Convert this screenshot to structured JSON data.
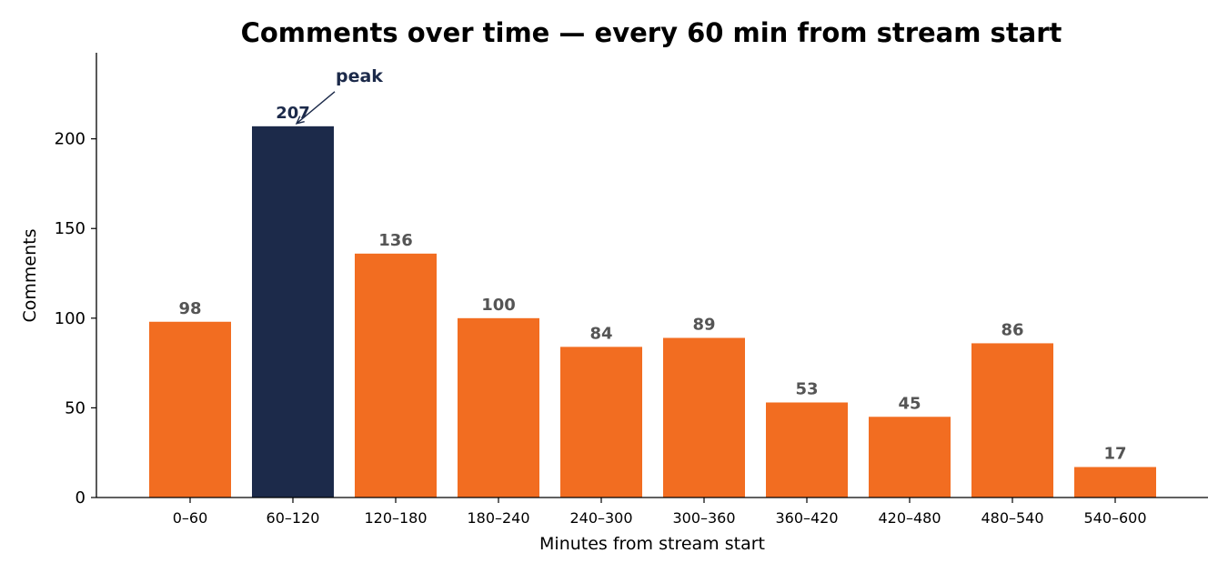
{
  "chart_data": {
    "type": "bar",
    "title": "Comments over time — every 60 min from stream start",
    "xlabel": "Minutes from stream start",
    "ylabel": "Comments",
    "categories": [
      "0–60",
      "60–120",
      "120–180",
      "180–240",
      "240–300",
      "300–360",
      "360–420",
      "420–480",
      "480–540",
      "540–600"
    ],
    "values": [
      98,
      207,
      136,
      100,
      84,
      89,
      53,
      45,
      86,
      17
    ],
    "ylim": [
      0,
      248
    ],
    "yticks": [
      0,
      50,
      100,
      150,
      200
    ],
    "grid": false,
    "highlight": {
      "index": 1,
      "annotation": "peak"
    },
    "colors": {
      "bar": "#f26d21",
      "highlight": "#1c2a4a",
      "value_label": "#555555",
      "highlight_label": "#1c2a4a"
    }
  }
}
